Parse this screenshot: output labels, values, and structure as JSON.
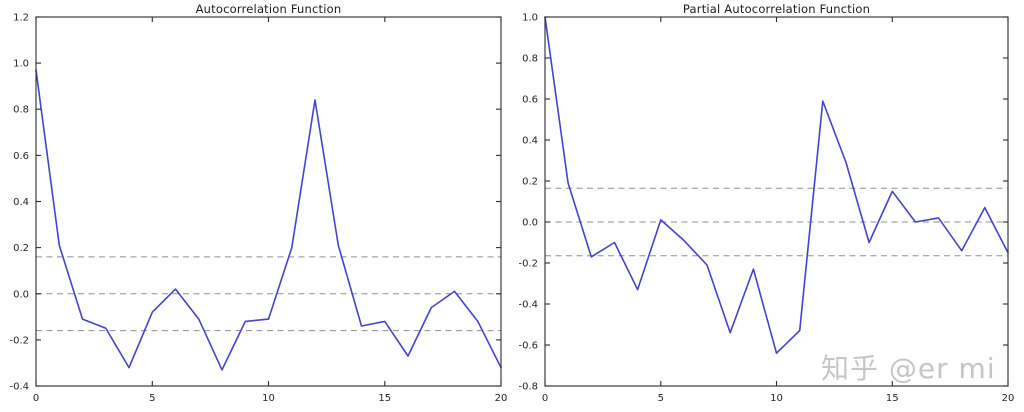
{
  "watermark": {
    "text": "知乎 @er mi"
  },
  "chart_data": [
    {
      "type": "line",
      "title": "Autocorrelation Function",
      "x": [
        0,
        1,
        2,
        3,
        4,
        5,
        6,
        7,
        8,
        9,
        10,
        11,
        12,
        13,
        14,
        15,
        16,
        17,
        18,
        19,
        20
      ],
      "values": [
        0.97,
        0.21,
        -0.11,
        -0.15,
        -0.32,
        -0.08,
        0.02,
        -0.11,
        -0.33,
        -0.12,
        -0.11,
        0.2,
        0.84,
        0.21,
        -0.14,
        -0.12,
        -0.27,
        -0.06,
        0.01,
        -0.12,
        -0.32
      ],
      "xlim": [
        0,
        20
      ],
      "ylim": [
        -0.4,
        1.2
      ],
      "xticks": [
        0,
        5,
        10,
        15,
        20
      ],
      "xtick_labels": [
        "0",
        "5",
        "10",
        "15",
        "20"
      ],
      "yticks": [
        -0.4,
        -0.2,
        0.0,
        0.2,
        0.4,
        0.6,
        0.8,
        1.0,
        1.2
      ],
      "ytick_labels": [
        "-0.4",
        "-0.2",
        "0.0",
        "0.2",
        "0.4",
        "0.6",
        "0.8",
        "1.0",
        "1.2"
      ],
      "ref_lines": [
        0.16,
        0.0,
        -0.16
      ],
      "line_color": "#4444cb",
      "ref_line_color": "#8f8f8f",
      "grid": false,
      "legend": "none"
    },
    {
      "type": "line",
      "title": "Partial Autocorrelation Function",
      "x": [
        0,
        1,
        2,
        3,
        4,
        5,
        6,
        7,
        8,
        9,
        10,
        11,
        12,
        13,
        14,
        15,
        16,
        17,
        18,
        19,
        20
      ],
      "values": [
        1.0,
        0.19,
        -0.17,
        -0.1,
        -0.33,
        0.01,
        -0.09,
        -0.21,
        -0.54,
        -0.23,
        -0.64,
        -0.53,
        0.59,
        0.29,
        -0.1,
        0.15,
        0.0,
        0.02,
        -0.14,
        0.07,
        -0.15
      ],
      "xlim": [
        0,
        20
      ],
      "ylim": [
        -0.8,
        1.0
      ],
      "xticks": [
        0,
        5,
        10,
        15,
        20
      ],
      "xtick_labels": [
        "0",
        "5",
        "10",
        "15",
        "20"
      ],
      "yticks": [
        -0.8,
        -0.6,
        -0.4,
        -0.2,
        0.0,
        0.2,
        0.4,
        0.6,
        0.8,
        1.0
      ],
      "ytick_labels": [
        "-0.8",
        "-0.6",
        "-0.4",
        "-0.2",
        "0.0",
        "0.2",
        "0.4",
        "0.6",
        "0.8",
        "1.0"
      ],
      "ref_lines": [
        0.165,
        0.0,
        -0.165
      ],
      "line_color": "#4444cb",
      "ref_line_color": "#8f8f8f",
      "grid": false,
      "legend": "none"
    }
  ]
}
